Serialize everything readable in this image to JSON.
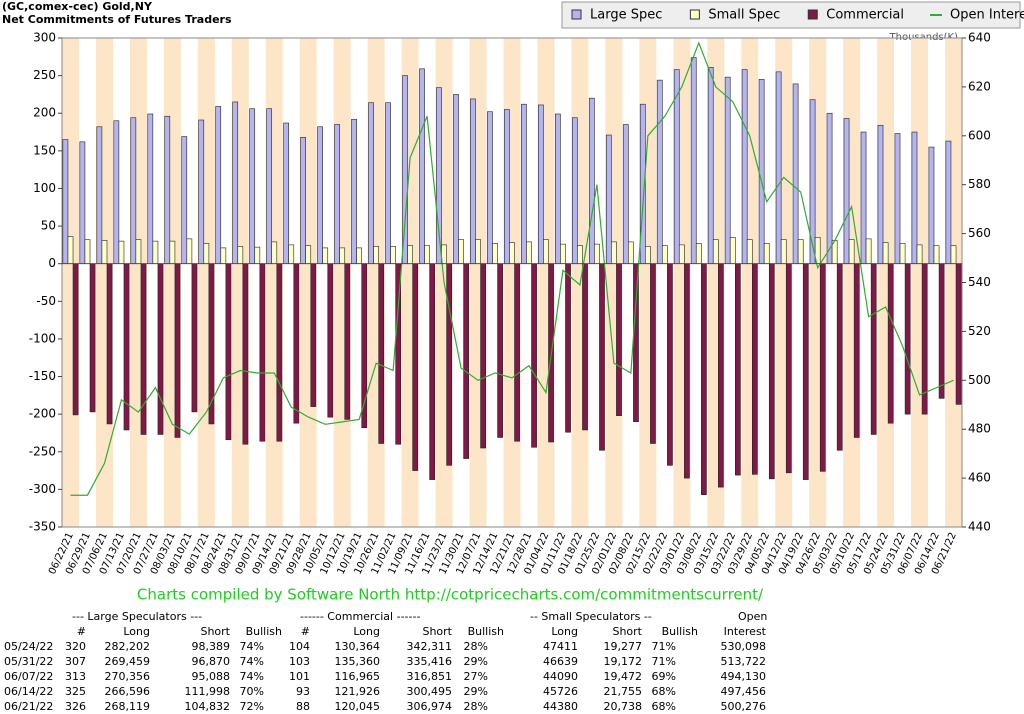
{
  "chart_data": {
    "type": "bar",
    "title": "(GC,comex-cec) Gold,NY",
    "subtitle": "Net Commitments of Futures Traders",
    "y2_label": "Thousands(K)",
    "credit": "Charts compiled by Software North  http://cotpricecharts.com/commitmentscurrent/",
    "legend": "top right",
    "grid": false,
    "categories": [
      "06/22/21",
      "06/29/21",
      "07/06/21",
      "07/13/21",
      "07/20/21",
      "07/27/21",
      "08/03/21",
      "08/10/21",
      "08/17/21",
      "08/24/21",
      "08/31/21",
      "09/07/21",
      "09/14/21",
      "09/21/21",
      "09/28/21",
      "10/05/21",
      "10/12/21",
      "10/19/21",
      "10/26/21",
      "11/02/21",
      "11/09/21",
      "11/16/21",
      "11/23/21",
      "11/30/21",
      "12/07/21",
      "12/14/21",
      "12/21/21",
      "12/28/21",
      "01/04/22",
      "01/11/22",
      "01/18/22",
      "01/25/22",
      "02/01/22",
      "02/08/22",
      "02/15/22",
      "02/22/22",
      "03/01/22",
      "03/08/22",
      "03/15/22",
      "03/22/22",
      "03/29/22",
      "04/05/22",
      "04/12/22",
      "04/19/22",
      "04/26/22",
      "05/03/22",
      "05/10/22",
      "05/17/22",
      "05/24/22",
      "05/31/22",
      "06/07/22",
      "06/14/22",
      "06/21/22"
    ],
    "series": [
      {
        "name": "Large Spec",
        "color": "#b4b4f0",
        "values": [
          165,
          162,
          182,
          190,
          194,
          199,
          196,
          169,
          191,
          209,
          215,
          206,
          206,
          187,
          168,
          182,
          185,
          192,
          214,
          214,
          250,
          259,
          234,
          225,
          219,
          202,
          205,
          212,
          211,
          199,
          194,
          220,
          171,
          185,
          212,
          244,
          258,
          274,
          261,
          248,
          258,
          245,
          255,
          239,
          218,
          200,
          193,
          175,
          184,
          173,
          175,
          155,
          163
        ]
      },
      {
        "name": "Small Spec",
        "color": "#ffffc8",
        "values": [
          36,
          32,
          31,
          30,
          32,
          30,
          30,
          33,
          27,
          21,
          23,
          22,
          29,
          25,
          24,
          21,
          21,
          21,
          23,
          23,
          24,
          24,
          25,
          32,
          32,
          27,
          28,
          29,
          32,
          26,
          24,
          26,
          29,
          29,
          23,
          24,
          25,
          27,
          32,
          35,
          32,
          27,
          32,
          32,
          35,
          31,
          32,
          33,
          28,
          27,
          25,
          24,
          24
        ]
      },
      {
        "name": "Commercial",
        "color": "#801848",
        "values": [
          -201,
          -197,
          -213,
          -221,
          -227,
          -227,
          -231,
          -197,
          -213,
          -234,
          -240,
          -236,
          -236,
          -212,
          -190,
          -204,
          -207,
          -218,
          -239,
          -240,
          -275,
          -287,
          -268,
          -259,
          -245,
          -231,
          -236,
          -244,
          -237,
          -224,
          -221,
          -248,
          -202,
          -210,
          -239,
          -268,
          -285,
          -307,
          -297,
          -281,
          -280,
          -286,
          -278,
          -287,
          -276,
          -248,
          -231,
          -227,
          -212,
          -200,
          -200,
          -179,
          -187
        ]
      },
      {
        "name": "Open Interest",
        "color": "#33aa33",
        "type": "line",
        "axis": "y2",
        "values": [
          453,
          453,
          466,
          492,
          487,
          497,
          482,
          478,
          487,
          501,
          504,
          503,
          503,
          489,
          485,
          482,
          483,
          484,
          507,
          504,
          591,
          608,
          540,
          505,
          500,
          503,
          501,
          506,
          495,
          545,
          539,
          580,
          507,
          503,
          600,
          608,
          620,
          638,
          620,
          614,
          600,
          573,
          583,
          577,
          546,
          557,
          571,
          526,
          530,
          514,
          494,
          497,
          500
        ]
      }
    ],
    "ylim": [
      -350,
      300
    ],
    "yticks": [
      -350,
      -300,
      -250,
      -200,
      -150,
      -100,
      -50,
      0,
      50,
      100,
      150,
      200,
      250,
      300
    ],
    "y2lim": [
      440,
      640
    ],
    "y2ticks": [
      440,
      460,
      480,
      500,
      520,
      540,
      560,
      580,
      600,
      620,
      640
    ]
  },
  "table": {
    "group_headers": [
      "--- Large Speculators ---",
      "------ Commercial ------",
      "-- Small Speculators --",
      "Open"
    ],
    "headers": [
      "#",
      "Long",
      "Short",
      "Bullish",
      "#",
      "Long",
      "Short",
      "Bullish",
      "Long",
      "Short",
      "Bullish",
      "Interest"
    ],
    "rows": [
      [
        "05/24/22",
        "320",
        "282,202",
        "98,389",
        "74%",
        "104",
        "130,364",
        "342,311",
        "28%",
        "47411",
        "19,277",
        "71%",
        "530,098"
      ],
      [
        "05/31/22",
        "307",
        "269,459",
        "96,870",
        "74%",
        "103",
        "135,360",
        "335,416",
        "29%",
        "46639",
        "19,172",
        "71%",
        "513,722"
      ],
      [
        "06/07/22",
        "313",
        "270,356",
        "95,088",
        "74%",
        "101",
        "116,965",
        "316,851",
        "27%",
        "44090",
        "19,472",
        "69%",
        "494,130"
      ],
      [
        "06/14/22",
        "325",
        "266,596",
        "111,998",
        "70%",
        "93",
        "121,926",
        "300,495",
        "29%",
        "45726",
        "21,755",
        "68%",
        "497,456"
      ],
      [
        "06/21/22",
        "326",
        "268,119",
        "104,832",
        "72%",
        "88",
        "120,045",
        "306,974",
        "28%",
        "44380",
        "20,738",
        "68%",
        "500,276"
      ]
    ]
  }
}
